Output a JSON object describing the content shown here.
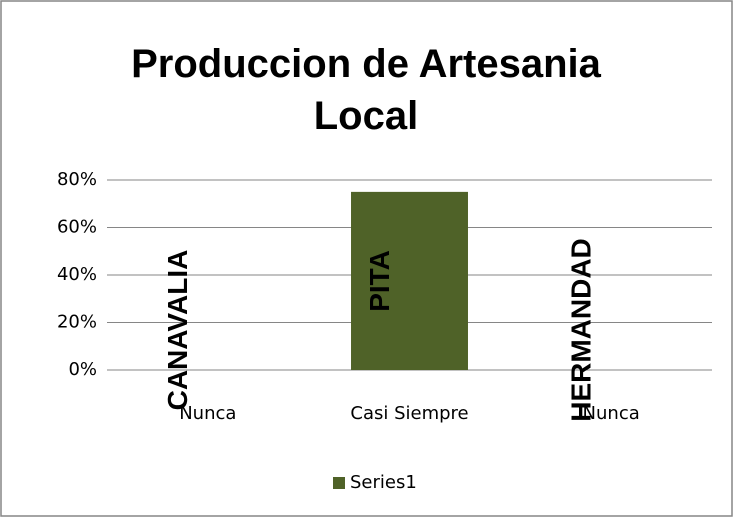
{
  "chart_data": {
    "type": "bar",
    "title": "Produccion de Artesania Local",
    "categories": [
      "Nunca",
      "Casi Siempre",
      "Nunca"
    ],
    "series": [
      {
        "name": "Series1",
        "color": "#4f6228",
        "values": [
          0,
          75,
          0
        ]
      }
    ],
    "point_labels": [
      "CANAVALIA",
      "PITA",
      "HERMANDAD"
    ],
    "ylim": [
      0,
      80
    ],
    "yticks": [
      {
        "value": 0,
        "label": "0%"
      },
      {
        "value": 20,
        "label": "20%"
      },
      {
        "value": 40,
        "label": "40%"
      },
      {
        "value": 60,
        "label": "60%"
      },
      {
        "value": 80,
        "label": "80%"
      }
    ],
    "grid": true,
    "legend": "bottom"
  }
}
